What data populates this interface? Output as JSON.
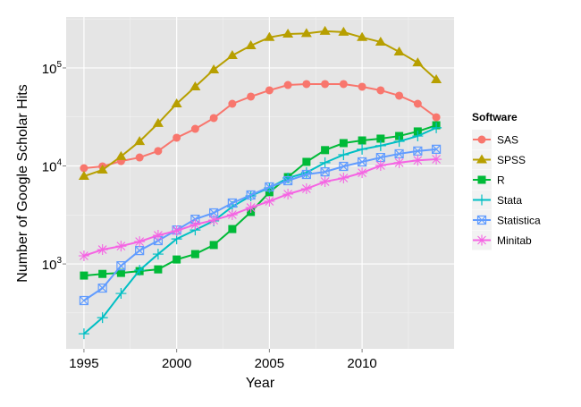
{
  "chart_data": {
    "type": "line",
    "title": "",
    "xlabel": "Year",
    "ylabel": "Number of Google Scholar Hits",
    "yscale": "log10",
    "xlim": [
      1994.04,
      2014.96
    ],
    "ylim": [
      136,
      331000
    ],
    "x_ticks": [
      1995,
      2000,
      2005,
      2010
    ],
    "y_ticks": [
      {
        "value": 1000,
        "base": "10",
        "exp": "3"
      },
      {
        "value": 10000,
        "base": "10",
        "exp": "4"
      },
      {
        "value": 100000,
        "base": "10",
        "exp": "5"
      }
    ],
    "grid": true,
    "legend": {
      "title": "Software",
      "placement": "right"
    },
    "x": [
      1995,
      1996,
      1997,
      1998,
      1999,
      2000,
      2001,
      2002,
      2003,
      2004,
      2005,
      2006,
      2007,
      2008,
      2009,
      2010,
      2011,
      2012,
      2013,
      2014
    ],
    "series": [
      {
        "name": "SAS",
        "color": "#F8766D",
        "marker": "circle",
        "values": [
          9490,
          9900,
          11200,
          12200,
          14200,
          19400,
          23900,
          30800,
          43100,
          51000,
          59100,
          67000,
          68500,
          68500,
          68500,
          64300,
          59100,
          52100,
          43100,
          31400
        ]
      },
      {
        "name": "SPSS",
        "color": "#B79F00",
        "marker": "triangle",
        "values": [
          7850,
          9100,
          12500,
          17800,
          27200,
          43100,
          64300,
          95900,
          134000,
          169000,
          205000,
          222000,
          225000,
          237000,
          232000,
          205000,
          184000,
          146000,
          113000,
          76000
        ]
      },
      {
        "name": "R",
        "color": "#00BA38",
        "marker": "square",
        "values": [
          761,
          791,
          810,
          845,
          880,
          1110,
          1260,
          1560,
          2270,
          3390,
          5390,
          7690,
          11000,
          14500,
          17100,
          18200,
          19000,
          20200,
          22500,
          26000
        ]
      },
      {
        "name": "Stata",
        "color": "#00BFC4",
        "marker": "plus",
        "values": [
          194,
          283,
          500,
          863,
          1260,
          1800,
          2220,
          2750,
          3840,
          4950,
          5980,
          7530,
          8560,
          10800,
          13000,
          14800,
          16100,
          17800,
          20200,
          24500
        ]
      },
      {
        "name": "Statistica",
        "color": "#619CFF",
        "marker": "square-x",
        "values": [
          423,
          567,
          958,
          1370,
          1730,
          2220,
          2860,
          3320,
          4180,
          5050,
          6100,
          7070,
          8190,
          8700,
          9900,
          11000,
          12200,
          13300,
          14200,
          14800
        ]
      },
      {
        "name": "Minitab",
        "color": "#F564E3",
        "marker": "asterisk",
        "values": [
          1210,
          1400,
          1520,
          1690,
          1960,
          2180,
          2520,
          2800,
          3180,
          3760,
          4360,
          5160,
          5850,
          6920,
          7530,
          8520,
          10100,
          10800,
          11400,
          11700
        ]
      }
    ]
  }
}
